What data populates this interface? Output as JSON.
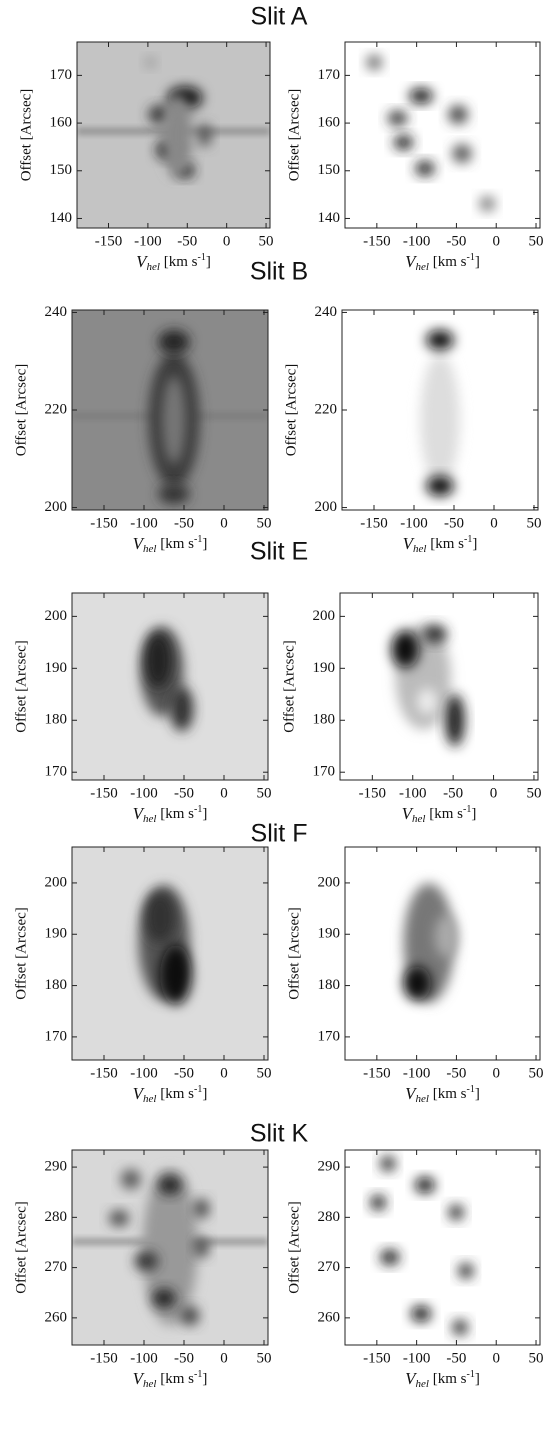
{
  "chart_data": [
    {
      "type": "image",
      "title": "Slit A",
      "xlabel": [
        "V",
        "hel",
        " [km s",
        "-1",
        "]"
      ],
      "ylabel": "Offset [Arcsec]",
      "xlim": [
        -190,
        55
      ],
      "xticks": [
        -150,
        -100,
        -50,
        0,
        50
      ],
      "ylim": [
        138,
        177
      ],
      "yticks": [
        140,
        150,
        160,
        170
      ]
    },
    {
      "type": "image",
      "xlabel": [
        "V",
        "hel",
        " [km s",
        "-1",
        "]"
      ],
      "ylabel": "Offset [Arcsec]",
      "xlim": [
        -190,
        55
      ],
      "xticks": [
        -150,
        -100,
        -50,
        0,
        50
      ],
      "ylim": [
        138,
        177
      ],
      "yticks": [
        140,
        150,
        160,
        170
      ]
    },
    {
      "type": "image",
      "title": "Slit B",
      "xlabel": [
        "V",
        "hel",
        " [km s",
        "-1",
        "]"
      ],
      "ylabel": "Offset [Arcsec]",
      "xlim": [
        -190,
        55
      ],
      "xticks": [
        -150,
        -100,
        -50,
        0,
        50
      ],
      "ylim": [
        199.5,
        240.5
      ],
      "yticks": [
        200,
        220,
        240
      ]
    },
    {
      "type": "image",
      "xlabel": [
        "V",
        "hel",
        " [km s",
        "-1",
        "]"
      ],
      "ylabel": "Offset [Arcsec]",
      "xlim": [
        -190,
        55
      ],
      "xticks": [
        -150,
        -100,
        -50,
        0,
        50
      ],
      "ylim": [
        199.5,
        240.5
      ],
      "yticks": [
        200,
        220,
        240
      ]
    },
    {
      "type": "image",
      "title": "Slit E",
      "xlabel": [
        "V",
        "hel",
        " [km s",
        "-1",
        "]"
      ],
      "ylabel": "Offset [Arcsec]",
      "xlim": [
        -190,
        55
      ],
      "xticks": [
        -150,
        -100,
        -50,
        0,
        50
      ],
      "ylim": [
        168.5,
        204.5
      ],
      "yticks": [
        170,
        180,
        190,
        200
      ]
    },
    {
      "type": "image",
      "xlabel": [
        "V",
        "hel",
        " [km s",
        "-1",
        "]"
      ],
      "ylabel": "Offset [Arcsec]",
      "xlim": [
        -190,
        55
      ],
      "xticks": [
        -150,
        -100,
        -50,
        0,
        50
      ],
      "ylim": [
        168.5,
        204.5
      ],
      "yticks": [
        170,
        180,
        190,
        200
      ]
    },
    {
      "type": "image",
      "title": "Slit F",
      "xlabel": [
        "V",
        "hel",
        " [km s",
        "-1",
        "]"
      ],
      "ylabel": "Offset [Arcsec]",
      "xlim": [
        -190,
        55
      ],
      "xticks": [
        -150,
        -100,
        -50,
        0,
        50
      ],
      "ylim": [
        165.5,
        207
      ],
      "yticks": [
        170,
        180,
        190,
        200
      ]
    },
    {
      "type": "image",
      "xlabel": [
        "V",
        "hel",
        " [km s",
        "-1",
        "]"
      ],
      "ylabel": "Offset [Arcsec]",
      "xlim": [
        -190,
        55
      ],
      "xticks": [
        -150,
        -100,
        -50,
        0,
        50
      ],
      "ylim": [
        165.5,
        207
      ],
      "yticks": [
        170,
        180,
        190,
        200
      ]
    },
    {
      "type": "image",
      "title": "Slit K",
      "xlabel": [
        "V",
        "hel",
        " [km s",
        "-1",
        "]"
      ],
      "ylabel": "Offset [Arcsec]",
      "xlim": [
        -190,
        55
      ],
      "xticks": [
        -150,
        -100,
        -50,
        0,
        50
      ],
      "ylim": [
        254.6,
        293.4
      ],
      "yticks": [
        260,
        270,
        280,
        290
      ]
    },
    {
      "type": "image",
      "xlabel": [
        "V",
        "hel",
        " [km s",
        "-1",
        "]"
      ],
      "ylabel": "Offset [Arcsec]",
      "xlim": [
        -190,
        55
      ],
      "xticks": [
        -150,
        -100,
        -50,
        0,
        50
      ],
      "ylim": [
        254.6,
        293.4
      ],
      "yticks": [
        260,
        270,
        280,
        290
      ]
    }
  ]
}
